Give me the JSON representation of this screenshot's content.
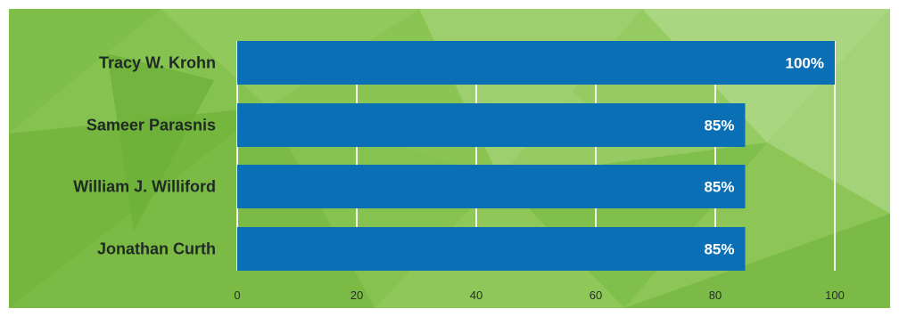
{
  "chart_data": {
    "type": "bar",
    "orientation": "horizontal",
    "categories": [
      "Tracy W. Krohn",
      "Sameer Parasnis",
      "William J. Williford",
      "Jonathan Curth"
    ],
    "values": [
      100,
      85,
      85,
      85
    ],
    "value_labels": [
      "100%",
      "85%",
      "85%",
      "85%"
    ],
    "xlim": [
      0,
      100
    ],
    "x_ticks": [
      0,
      20,
      40,
      60,
      80,
      100
    ],
    "x_tick_labels": [
      "0",
      "20",
      "40",
      "60",
      "80",
      "100"
    ],
    "title": "",
    "xlabel": "",
    "ylabel": "",
    "grid": true,
    "legend": "none"
  },
  "colors": {
    "bar": "#0b6fb5",
    "gridline": "#f3f7ee",
    "background_base": "#86c24f",
    "category_text": "#1f2a24",
    "value_text": "#ffffff",
    "tick_text": "#243027"
  }
}
